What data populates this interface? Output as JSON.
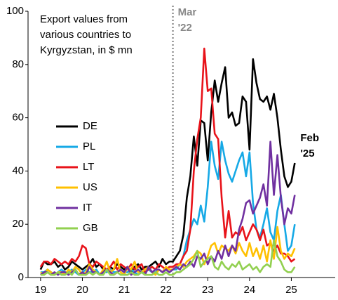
{
  "chart_data": {
    "type": "line",
    "title": "Export values from various countries to Kyrgyzstan, in $ mn",
    "annotations": [
      {
        "x": 22.167,
        "label": "Mar '22",
        "color": "#888888"
      },
      {
        "x": 25.083,
        "label": "Feb '25",
        "color": "#000000"
      }
    ],
    "x": [
      19,
      19.083,
      19.167,
      19.25,
      19.333,
      19.417,
      19.5,
      19.583,
      19.667,
      19.75,
      19.833,
      19.917,
      20,
      20.083,
      20.167,
      20.25,
      20.333,
      20.417,
      20.5,
      20.583,
      20.667,
      20.75,
      20.833,
      20.917,
      21,
      21.083,
      21.167,
      21.25,
      21.333,
      21.417,
      21.5,
      21.583,
      21.667,
      21.75,
      21.833,
      21.917,
      22,
      22.083,
      22.167,
      22.25,
      22.333,
      22.417,
      22.5,
      22.583,
      22.667,
      22.75,
      22.833,
      22.917,
      23,
      23.083,
      23.167,
      23.25,
      23.333,
      23.417,
      23.5,
      23.583,
      23.667,
      23.75,
      23.833,
      23.917,
      24,
      24.083,
      24.167,
      24.25,
      24.333,
      24.417,
      24.5,
      24.583,
      24.667,
      24.75,
      24.833,
      24.917,
      25,
      25.083
    ],
    "xlim": [
      18.7,
      26.05
    ],
    "xticks": [
      19,
      20,
      21,
      22,
      23,
      24,
      25
    ],
    "ylim": [
      0,
      100
    ],
    "yticks": [
      0,
      20,
      40,
      60,
      80,
      100
    ],
    "series": [
      {
        "name": "DE",
        "color": "#000000",
        "values": [
          3,
          6,
          5,
          5,
          6,
          4,
          5,
          3,
          4,
          6,
          5,
          4,
          3,
          4,
          5,
          7,
          4,
          5,
          3,
          2,
          4,
          3,
          5,
          4,
          3,
          4,
          2,
          4,
          5,
          3,
          4,
          4,
          5,
          6,
          4,
          7,
          5,
          6,
          6,
          8,
          10,
          16,
          30,
          38,
          53,
          42,
          59,
          58,
          44,
          62,
          74,
          66,
          73,
          79,
          60,
          62,
          57,
          58,
          68,
          66,
          48,
          82,
          73,
          67,
          66,
          68,
          63,
          69,
          60,
          48,
          38,
          34,
          36,
          43
        ]
      },
      {
        "name": "PL",
        "color": "#16a9e6",
        "values": [
          2,
          2,
          3,
          2,
          1,
          2,
          3,
          2,
          2,
          3,
          2,
          1,
          2,
          3,
          2,
          2,
          3,
          1,
          2,
          2,
          3,
          2,
          2,
          3,
          2,
          2,
          3,
          2,
          1,
          2,
          2,
          3,
          2,
          2,
          3,
          2,
          3,
          2,
          3,
          3,
          5,
          8,
          14,
          18,
          22,
          20,
          27,
          21,
          34,
          51,
          42,
          37,
          51,
          44,
          39,
          36,
          40,
          44,
          47,
          38,
          47,
          28,
          18,
          15,
          20,
          26,
          17,
          14,
          25,
          31,
          20,
          10,
          12,
          20
        ]
      },
      {
        "name": "LT",
        "color": "#e8131a",
        "values": [
          4,
          6,
          6,
          5,
          7,
          6,
          5,
          6,
          5,
          7,
          6,
          8,
          12,
          11,
          5,
          4,
          6,
          5,
          4,
          3,
          4,
          6,
          3,
          5,
          4,
          3,
          5,
          3,
          4,
          5,
          2,
          3,
          4,
          3,
          5,
          4,
          3,
          4,
          4,
          5,
          5,
          8,
          10,
          18,
          40,
          52,
          60,
          86,
          70,
          71,
          54,
          52,
          30,
          15,
          25,
          15,
          17,
          16,
          19,
          14,
          17,
          20,
          18,
          14,
          18,
          12,
          13,
          10,
          12,
          9,
          9,
          8,
          6,
          7
        ]
      },
      {
        "name": "US",
        "color": "#ffc000",
        "values": [
          2,
          1,
          3,
          2,
          1,
          2,
          2,
          1,
          3,
          2,
          4,
          3,
          1,
          2,
          5,
          3,
          2,
          1,
          3,
          6,
          2,
          3,
          7,
          2,
          1,
          4,
          3,
          6,
          2,
          2,
          3,
          4,
          2,
          1,
          3,
          2,
          4,
          3,
          3,
          4,
          5,
          4,
          6,
          7,
          8,
          10,
          9,
          5,
          8,
          12,
          13,
          9,
          12,
          11,
          10,
          12,
          9,
          13,
          10,
          8,
          13,
          8,
          11,
          7,
          12,
          6,
          14,
          7,
          19,
          10,
          7,
          9,
          8,
          11
        ]
      },
      {
        "name": "IT",
        "color": "#7030a0",
        "values": [
          1,
          2,
          2,
          1,
          2,
          1,
          2,
          2,
          1,
          2,
          3,
          1,
          2,
          1,
          4,
          2,
          2,
          1,
          2,
          3,
          2,
          1,
          2,
          3,
          2,
          4,
          1,
          2,
          3,
          2,
          1,
          4,
          2,
          3,
          3,
          2,
          3,
          2,
          3,
          4,
          3,
          5,
          4,
          6,
          4,
          8,
          7,
          9,
          5,
          8,
          6,
          10,
          7,
          12,
          8,
          12,
          10,
          18,
          22,
          28,
          29,
          24,
          27,
          30,
          35,
          27,
          51,
          31,
          46,
          30,
          20,
          26,
          24,
          31
        ]
      },
      {
        "name": "GB",
        "color": "#92d050",
        "values": [
          1,
          1,
          2,
          1,
          1,
          2,
          1,
          1,
          2,
          1,
          3,
          1,
          1,
          1,
          2,
          1,
          2,
          1,
          1,
          3,
          1,
          1,
          2,
          1,
          1,
          1,
          2,
          1,
          1,
          2,
          1,
          1,
          1,
          2,
          1,
          1,
          2,
          1,
          1,
          2,
          2,
          3,
          4,
          5,
          7,
          10,
          4,
          6,
          7,
          8,
          4,
          3,
          6,
          4,
          3,
          5,
          4,
          6,
          3,
          4,
          5,
          3,
          4,
          2,
          4,
          5,
          4,
          14,
          8,
          6,
          3,
          2,
          2,
          4
        ]
      }
    ]
  }
}
